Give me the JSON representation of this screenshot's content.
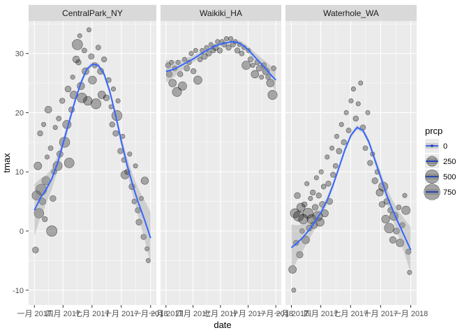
{
  "chart_data": {
    "type": "scatter",
    "xlabel": "date",
    "ylabel": "tmax",
    "ylim": [
      -12.5,
      35.5
    ],
    "y_ticks": [
      -10,
      0,
      10,
      20,
      30
    ],
    "x_tick_labels": [
      "一月 2017",
      "四月 2017",
      "七月 2017",
      "十月 2017",
      "一月 2018"
    ],
    "x_tick_fracs": [
      0.0,
      0.2466,
      0.4959,
      0.7479,
      1.0
    ],
    "grid": true,
    "legend": {
      "title": "prcp",
      "position": "right",
      "entries": [
        "0",
        "250",
        "500",
        "750"
      ],
      "sizes": [
        0,
        250,
        500,
        750
      ]
    },
    "colors": {
      "panel": "#ebebeb",
      "strip": "#d9d9d9",
      "grid_major": "#ffffff",
      "smooth": "#3366ff",
      "point_fill": "#000000",
      "ribbon": "#999999"
    },
    "facets": [
      {
        "name": "CentralPark_NY",
        "smooth": [
          [
            0.0,
            3.5
          ],
          [
            0.05,
            5.5
          ],
          [
            0.1,
            7.0
          ],
          [
            0.15,
            8.8
          ],
          [
            0.2,
            11.5
          ],
          [
            0.25,
            15.0
          ],
          [
            0.3,
            18.5
          ],
          [
            0.35,
            22.0
          ],
          [
            0.4,
            25.0
          ],
          [
            0.45,
            27.3
          ],
          [
            0.5,
            28.2
          ],
          [
            0.55,
            28.0
          ],
          [
            0.6,
            26.5
          ],
          [
            0.65,
            23.5
          ],
          [
            0.7,
            19.5
          ],
          [
            0.75,
            15.0
          ],
          [
            0.8,
            11.0
          ],
          [
            0.85,
            7.5
          ],
          [
            0.9,
            4.5
          ],
          [
            0.95,
            1.8
          ],
          [
            1.0,
            -1.2
          ]
        ],
        "band": [
          0.0,
          4.0
        ],
        "peak": 28.2,
        "points": [
          [
            0.01,
            -3.2,
            60
          ],
          [
            0.02,
            6.0,
            200
          ],
          [
            0.03,
            11.0,
            120
          ],
          [
            0.04,
            3.0,
            220
          ],
          [
            0.05,
            16.5,
            40
          ],
          [
            0.06,
            7.0,
            300
          ],
          [
            0.07,
            5.0,
            80
          ],
          [
            0.08,
            18.0,
            20
          ],
          [
            0.09,
            2.0,
            40
          ],
          [
            0.1,
            8.5,
            150
          ],
          [
            0.11,
            12.5,
            20
          ],
          [
            0.12,
            20.5,
            90
          ],
          [
            0.14,
            14.0,
            30
          ],
          [
            0.15,
            0.0,
            280
          ],
          [
            0.16,
            5.5,
            60
          ],
          [
            0.17,
            10.0,
            40
          ],
          [
            0.18,
            17.5,
            20
          ],
          [
            0.2,
            11.0,
            200
          ],
          [
            0.21,
            19.0,
            30
          ],
          [
            0.22,
            13.0,
            70
          ],
          [
            0.24,
            22.0,
            40
          ],
          [
            0.26,
            15.0,
            260
          ],
          [
            0.28,
            18.0,
            160
          ],
          [
            0.29,
            24.0,
            60
          ],
          [
            0.3,
            11.5,
            230
          ],
          [
            0.32,
            20.5,
            50
          ],
          [
            0.33,
            26.0,
            20
          ],
          [
            0.34,
            23.0,
            120
          ],
          [
            0.36,
            29.0,
            90
          ],
          [
            0.37,
            31.5,
            270
          ],
          [
            0.38,
            28.5,
            40
          ],
          [
            0.39,
            33.0,
            20
          ],
          [
            0.4,
            24.5,
            110
          ],
          [
            0.41,
            22.5,
            230
          ],
          [
            0.43,
            30.5,
            30
          ],
          [
            0.44,
            27.0,
            90
          ],
          [
            0.46,
            22.0,
            180
          ],
          [
            0.47,
            34.0,
            20
          ],
          [
            0.49,
            29.5,
            50
          ],
          [
            0.5,
            25.5,
            140
          ],
          [
            0.52,
            28.0,
            40
          ],
          [
            0.53,
            21.5,
            250
          ],
          [
            0.55,
            31.0,
            30
          ],
          [
            0.57,
            27.0,
            70
          ],
          [
            0.58,
            23.0,
            120
          ],
          [
            0.6,
            29.0,
            40
          ],
          [
            0.62,
            22.5,
            60
          ],
          [
            0.64,
            25.5,
            30
          ],
          [
            0.66,
            21.0,
            20
          ],
          [
            0.67,
            18.0,
            40
          ],
          [
            0.68,
            24.0,
            20
          ],
          [
            0.7,
            16.5,
            50
          ],
          [
            0.71,
            19.5,
            260
          ],
          [
            0.72,
            22.0,
            20
          ],
          [
            0.74,
            13.5,
            40
          ],
          [
            0.76,
            16.0,
            20
          ],
          [
            0.77,
            12.0,
            30
          ],
          [
            0.78,
            9.5,
            150
          ],
          [
            0.8,
            10.0,
            40
          ],
          [
            0.82,
            13.0,
            20
          ],
          [
            0.84,
            7.5,
            60
          ],
          [
            0.86,
            5.0,
            30
          ],
          [
            0.87,
            11.0,
            20
          ],
          [
            0.89,
            3.5,
            40
          ],
          [
            0.9,
            1.5,
            60
          ],
          [
            0.92,
            5.5,
            20
          ],
          [
            0.94,
            -1.0,
            40
          ],
          [
            0.95,
            8.5,
            110
          ],
          [
            0.97,
            -3.0,
            20
          ],
          [
            0.98,
            -5.0,
            20
          ]
        ]
      },
      {
        "name": "Waikiki_HA",
        "smooth": [
          [
            0.0,
            27.0
          ],
          [
            0.05,
            27.2
          ],
          [
            0.1,
            27.6
          ],
          [
            0.15,
            28.1
          ],
          [
            0.2,
            28.6
          ],
          [
            0.25,
            29.1
          ],
          [
            0.3,
            29.7
          ],
          [
            0.35,
            30.3
          ],
          [
            0.4,
            30.8
          ],
          [
            0.45,
            31.3
          ],
          [
            0.5,
            31.6
          ],
          [
            0.55,
            31.8
          ],
          [
            0.6,
            32.0
          ],
          [
            0.65,
            31.9
          ],
          [
            0.7,
            31.4
          ],
          [
            0.75,
            30.6
          ],
          [
            0.8,
            29.6
          ],
          [
            0.85,
            28.6
          ],
          [
            0.9,
            27.6
          ],
          [
            0.95,
            26.5
          ],
          [
            1.0,
            25.5
          ]
        ],
        "band": [
          0.0,
          1.5
        ],
        "peak": 32.0,
        "points": [
          [
            0.02,
            28.0,
            40
          ],
          [
            0.03,
            26.5,
            60
          ],
          [
            0.05,
            28.5,
            20
          ],
          [
            0.06,
            25.0,
            120
          ],
          [
            0.08,
            27.5,
            30
          ],
          [
            0.1,
            23.5,
            200
          ],
          [
            0.11,
            28.5,
            20
          ],
          [
            0.13,
            26.5,
            40
          ],
          [
            0.15,
            24.5,
            160
          ],
          [
            0.17,
            29.0,
            20
          ],
          [
            0.19,
            27.5,
            50
          ],
          [
            0.21,
            28.5,
            30
          ],
          [
            0.23,
            30.0,
            20
          ],
          [
            0.25,
            27.0,
            40
          ],
          [
            0.27,
            30.5,
            20
          ],
          [
            0.29,
            25.5,
            150
          ],
          [
            0.31,
            29.0,
            30
          ],
          [
            0.33,
            30.5,
            20
          ],
          [
            0.35,
            29.5,
            60
          ],
          [
            0.37,
            31.0,
            20
          ],
          [
            0.39,
            30.0,
            40
          ],
          [
            0.41,
            31.5,
            20
          ],
          [
            0.43,
            30.5,
            30
          ],
          [
            0.45,
            31.0,
            50
          ],
          [
            0.47,
            32.0,
            20
          ],
          [
            0.49,
            30.5,
            40
          ],
          [
            0.51,
            32.0,
            20
          ],
          [
            0.53,
            31.5,
            30
          ],
          [
            0.55,
            32.5,
            20
          ],
          [
            0.57,
            31.0,
            40
          ],
          [
            0.59,
            32.5,
            20
          ],
          [
            0.61,
            31.5,
            30
          ],
          [
            0.63,
            32.0,
            20
          ],
          [
            0.65,
            30.5,
            40
          ],
          [
            0.67,
            31.5,
            20
          ],
          [
            0.69,
            30.0,
            30
          ],
          [
            0.71,
            31.0,
            20
          ],
          [
            0.73,
            28.0,
            160
          ],
          [
            0.75,
            30.5,
            20
          ],
          [
            0.77,
            29.0,
            40
          ],
          [
            0.79,
            28.0,
            20
          ],
          [
            0.81,
            26.5,
            120
          ],
          [
            0.83,
            28.5,
            30
          ],
          [
            0.85,
            27.5,
            60
          ],
          [
            0.87,
            26.0,
            20
          ],
          [
            0.89,
            28.0,
            40
          ],
          [
            0.91,
            27.0,
            100
          ],
          [
            0.93,
            26.0,
            30
          ],
          [
            0.95,
            25.0,
            120
          ],
          [
            0.97,
            23.0,
            200
          ],
          [
            0.98,
            27.5,
            30
          ]
        ]
      },
      {
        "name": "Waterhole_WA",
        "smooth": [
          [
            0.0,
            -2.8
          ],
          [
            0.05,
            -2.0
          ],
          [
            0.1,
            -1.0
          ],
          [
            0.15,
            0.2
          ],
          [
            0.2,
            1.6
          ],
          [
            0.25,
            3.2
          ],
          [
            0.3,
            5.2
          ],
          [
            0.35,
            7.8
          ],
          [
            0.4,
            10.8
          ],
          [
            0.45,
            13.8
          ],
          [
            0.5,
            16.2
          ],
          [
            0.55,
            17.5
          ],
          [
            0.6,
            17.0
          ],
          [
            0.65,
            15.0
          ],
          [
            0.7,
            12.0
          ],
          [
            0.75,
            9.0
          ],
          [
            0.8,
            6.0
          ],
          [
            0.85,
            3.5
          ],
          [
            0.9,
            1.2
          ],
          [
            0.95,
            -1.0
          ],
          [
            1.0,
            -3.2
          ]
        ],
        "band": [
          0.0,
          3.5
        ],
        "peak": 17.5,
        "points": [
          [
            0.01,
            -6.5,
            120
          ],
          [
            0.02,
            -10.0,
            20
          ],
          [
            0.03,
            3.0,
            200
          ],
          [
            0.04,
            -2.0,
            40
          ],
          [
            0.05,
            6.0,
            60
          ],
          [
            0.06,
            2.5,
            250
          ],
          [
            0.07,
            -4.0,
            80
          ],
          [
            0.08,
            4.0,
            150
          ],
          [
            0.09,
            0.0,
            30
          ],
          [
            0.1,
            2.0,
            220
          ],
          [
            0.11,
            4.5,
            40
          ],
          [
            0.12,
            -1.5,
            120
          ],
          [
            0.13,
            8.0,
            20
          ],
          [
            0.14,
            3.0,
            260
          ],
          [
            0.15,
            0.5,
            60
          ],
          [
            0.16,
            5.5,
            20
          ],
          [
            0.17,
            2.0,
            200
          ],
          [
            0.18,
            6.5,
            40
          ],
          [
            0.19,
            1.0,
            90
          ],
          [
            0.2,
            4.0,
            60
          ],
          [
            0.21,
            9.0,
            20
          ],
          [
            0.22,
            2.5,
            230
          ],
          [
            0.23,
            6.0,
            40
          ],
          [
            0.24,
            1.5,
            150
          ],
          [
            0.25,
            10.0,
            20
          ],
          [
            0.26,
            4.5,
            60
          ],
          [
            0.27,
            7.5,
            30
          ],
          [
            0.28,
            3.0,
            100
          ],
          [
            0.3,
            12.5,
            20
          ],
          [
            0.31,
            8.0,
            40
          ],
          [
            0.32,
            5.0,
            60
          ],
          [
            0.34,
            14.0,
            20
          ],
          [
            0.35,
            9.5,
            40
          ],
          [
            0.37,
            11.0,
            30
          ],
          [
            0.38,
            16.0,
            20
          ],
          [
            0.4,
            13.5,
            50
          ],
          [
            0.42,
            18.0,
            20
          ],
          [
            0.44,
            15.0,
            40
          ],
          [
            0.46,
            20.0,
            20
          ],
          [
            0.48,
            17.0,
            30
          ],
          [
            0.5,
            22.0,
            20
          ],
          [
            0.52,
            24.0,
            20
          ],
          [
            0.54,
            19.0,
            40
          ],
          [
            0.56,
            21.5,
            20
          ],
          [
            0.58,
            25.0,
            20
          ],
          [
            0.6,
            17.5,
            40
          ],
          [
            0.62,
            14.0,
            30
          ],
          [
            0.64,
            20.0,
            20
          ],
          [
            0.66,
            11.5,
            40
          ],
          [
            0.68,
            13.0,
            20
          ],
          [
            0.7,
            8.5,
            60
          ],
          [
            0.72,
            10.0,
            30
          ],
          [
            0.74,
            6.5,
            100
          ],
          [
            0.76,
            4.5,
            60
          ],
          [
            0.77,
            7.5,
            200
          ],
          [
            0.79,
            2.0,
            140
          ],
          [
            0.8,
            5.0,
            60
          ],
          [
            0.82,
            0.5,
            230
          ],
          [
            0.83,
            3.5,
            40
          ],
          [
            0.85,
            -1.5,
            80
          ],
          [
            0.86,
            2.5,
            160
          ],
          [
            0.88,
            0.0,
            60
          ],
          [
            0.9,
            4.0,
            30
          ],
          [
            0.91,
            -2.0,
            120
          ],
          [
            0.93,
            1.0,
            40
          ],
          [
            0.95,
            6.0,
            20
          ],
          [
            0.96,
            3.5,
            160
          ],
          [
            0.98,
            -3.5,
            40
          ],
          [
            0.99,
            -7.0,
            20
          ]
        ]
      }
    ]
  }
}
